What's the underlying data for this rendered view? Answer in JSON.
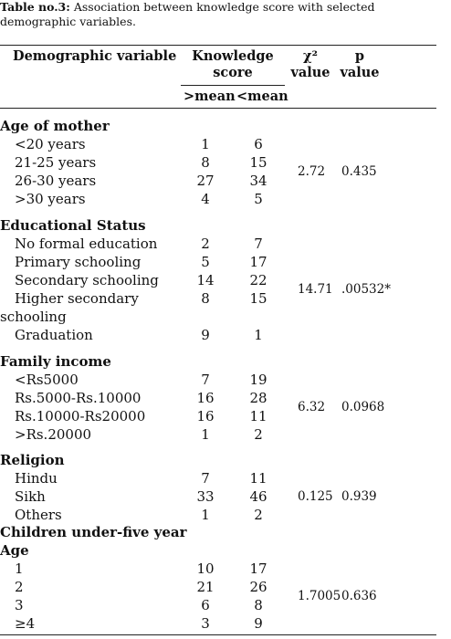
{
  "caption": {
    "label": "Table no.3:",
    "text": " Association between knowledge score with selected demographic variables."
  },
  "headers": {
    "variable": "Demographic variable",
    "knowledge": "Knowledge score",
    "chi_line1": "χ²",
    "chi_line2": "value",
    "p_line1": "p",
    "p_line2": "value",
    "above_mean": ">mean",
    "below_mean": "<mean"
  },
  "groups": [
    {
      "title": "Age of mother",
      "chi": "2.72",
      "p": "0.435",
      "rows": [
        {
          "label": "<20 years",
          "above": "1",
          "below": "6"
        },
        {
          "label": "21-25 years",
          "above": "8",
          "below": "15"
        },
        {
          "label": "26-30 years",
          "above": "27",
          "below": "34"
        },
        {
          "label": ">30 years",
          "above": "4",
          "below": "5"
        }
      ]
    },
    {
      "title": "Educational Status",
      "chi": "14.71",
      "p": ".00532*",
      "rows": [
        {
          "label": "No formal education",
          "above": "2",
          "below": "7"
        },
        {
          "label": "Primary schooling",
          "above": "5",
          "below": "17"
        },
        {
          "label": "Secondary schooling",
          "above": "14",
          "below": "22"
        },
        {
          "label": "Higher secondary",
          "label2": "schooling",
          "above": "8",
          "below": "15"
        },
        {
          "label": "Graduation",
          "above": "9",
          "below": "1"
        }
      ]
    },
    {
      "title": "Family income",
      "chi": "6.32",
      "p": "0.0968",
      "rows": [
        {
          "label": "<Rs5000",
          "above": "7",
          "below": "19"
        },
        {
          "label": "Rs.5000-Rs.10000",
          "above": "16",
          "below": "28"
        },
        {
          "label": "Rs.10000-Rs20000",
          "above": "16",
          "below": "11"
        },
        {
          "label": ">Rs.20000",
          "above": "1",
          "below": "2"
        }
      ]
    },
    {
      "title": "Religion",
      "chi": "0.125",
      "p": "0.939",
      "rows": [
        {
          "label": "Hindu",
          "above": "7",
          "below": "11"
        },
        {
          "label": "Sikh",
          "above": "33",
          "below": "46"
        },
        {
          "label": "Others",
          "above": "1",
          "below": "2"
        }
      ]
    },
    {
      "title": "Children under-five year",
      "title2": "Age",
      "chi": "1.7005",
      "p": "0.636",
      "rows": [
        {
          "label": "1",
          "above": "10",
          "below": "17"
        },
        {
          "label": "2",
          "above": "21",
          "below": "26"
        },
        {
          "label": "3",
          "above": "6",
          "below": "8"
        },
        {
          "label": "≥4",
          "above": "3",
          "below": "9"
        }
      ]
    }
  ]
}
